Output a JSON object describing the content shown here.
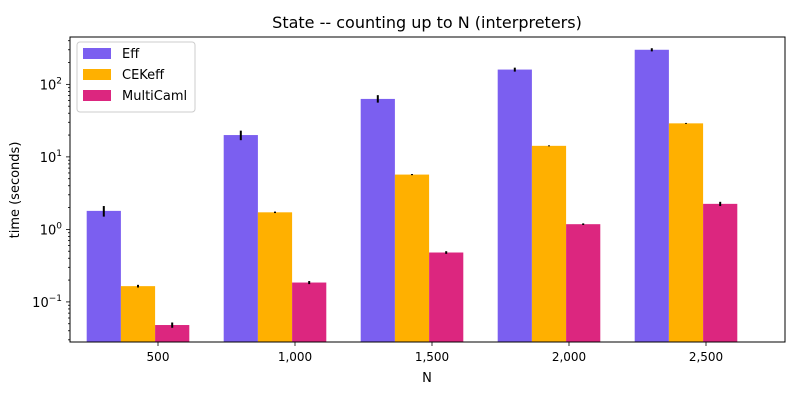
{
  "chart_data": {
    "type": "bar",
    "title": "State -- counting up to N (interpreters)",
    "xlabel": "N",
    "ylabel": "time (seconds)",
    "yscale": "log",
    "ylim": [
      0.028,
      450
    ],
    "yticks": [
      {
        "value": 0.1,
        "base": "10",
        "exp": "−1"
      },
      {
        "value": 1,
        "base": "10",
        "exp": "0"
      },
      {
        "value": 10,
        "base": "10",
        "exp": "1"
      },
      {
        "value": 100,
        "base": "10",
        "exp": "2"
      }
    ],
    "categories": [
      "500",
      "1,000",
      "1,500",
      "2,000",
      "2,500"
    ],
    "legend_position": "top-left",
    "grid": false,
    "series": [
      {
        "name": "Eff",
        "color": "#7b5ff0",
        "values": [
          1.8,
          20,
          63,
          160,
          300
        ],
        "err": [
          [
            1.5,
            2.1
          ],
          [
            17,
            23
          ],
          [
            56,
            71
          ],
          [
            150,
            170
          ],
          [
            285,
            315
          ]
        ]
      },
      {
        "name": "CEKeff",
        "color": "#ffb000",
        "values": [
          0.165,
          1.72,
          5.7,
          14.2,
          29
        ],
        "err": [
          [
            0.158,
            0.172
          ],
          [
            1.68,
            1.76
          ],
          [
            5.6,
            5.8
          ],
          [
            14.0,
            14.4
          ],
          [
            28.6,
            29.4
          ]
        ]
      },
      {
        "name": "MultiCaml",
        "color": "#dc267f",
        "values": [
          0.048,
          0.185,
          0.48,
          1.18,
          2.25
        ],
        "err": [
          [
            0.044,
            0.052
          ],
          [
            0.176,
            0.194
          ],
          [
            0.46,
            0.5
          ],
          [
            1.15,
            1.21
          ],
          [
            2.1,
            2.4
          ]
        ]
      }
    ]
  }
}
